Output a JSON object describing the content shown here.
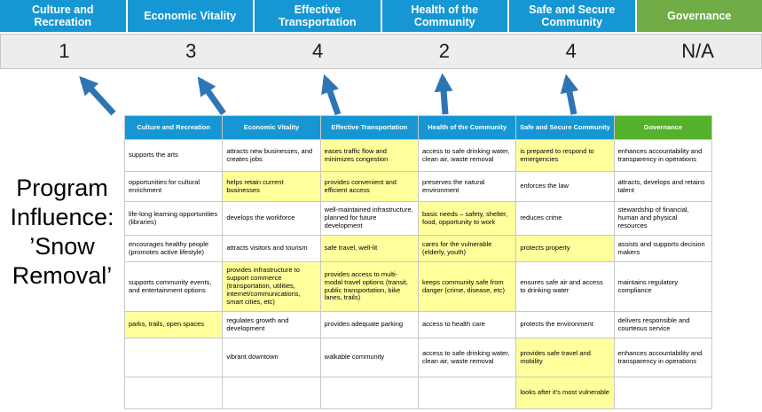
{
  "title": "Program Influence: ’Snow Removal’",
  "colors": {
    "header_blue": "#1697D4",
    "banner_green": "#70AD47",
    "table_green": "#55B02C",
    "highlight_yellow": "#FFFF9C",
    "arrow_blue": "#2E75B6",
    "score_bg": "#EDEDED",
    "border": "#C8C8C8"
  },
  "banner": {
    "columns": [
      {
        "label": "Culture and Recreation",
        "score": "1",
        "color": "blue"
      },
      {
        "label": "Economic Vitality",
        "score": "3",
        "color": "blue"
      },
      {
        "label": "Effective Transportation",
        "score": "4",
        "color": "blue"
      },
      {
        "label": "Health of the Community",
        "score": "2",
        "color": "blue"
      },
      {
        "label": "Safe and Secure Community",
        "score": "4",
        "color": "blue"
      },
      {
        "label": "Governance",
        "score": "N/A",
        "color": "green"
      }
    ]
  },
  "table": {
    "headers": [
      "Culture and Recreation",
      "Economic Vitality",
      "Effective Transportation",
      "Health of the Community",
      "Safe and Secure Community",
      "Governance"
    ],
    "rows": [
      [
        {
          "t": "supports the arts"
        },
        {
          "t": "attracts new businesses, and creates jobs"
        },
        {
          "t": "eases traffic flow and minimizes congestion",
          "h": true
        },
        {
          "t": "access to safe drinking water, clean air, waste removal"
        },
        {
          "t": "is prepared to respond to emergencies",
          "h": true
        },
        {
          "t": "enhances accountability and transparency in operations"
        }
      ],
      [
        {
          "t": "opportunities for cultural enrichment"
        },
        {
          "t": "helps retain current businesses",
          "h": true
        },
        {
          "t": "provides convenient and efficient access",
          "h": true
        },
        {
          "t": "preserves the natural environment"
        },
        {
          "t": "enforces the law"
        },
        {
          "t": "attracts, develops and retains talent"
        }
      ],
      [
        {
          "t": "life-long learning opportunities (libraries)"
        },
        {
          "t": "develops the workforce"
        },
        {
          "t": "well-maintained infrastructure, planned for future development"
        },
        {
          "t": "basic needs – safety, shelter, food, opportunity to work",
          "h": true
        },
        {
          "t": "reduces crime"
        },
        {
          "t": "stewardship of financial, human and physical resources"
        }
      ],
      [
        {
          "t": "encourages healthy people (promotes active lifestyle)"
        },
        {
          "t": "attracts visitors and tourism"
        },
        {
          "t": "safe travel, well-lit",
          "h": true
        },
        {
          "t": "cares for the vulnerable (elderly, youth)",
          "h": true
        },
        {
          "t": "protects property",
          "h": true
        },
        {
          "t": "assists and supports decision makers"
        }
      ],
      [
        {
          "t": "supports community events, and entertainment options"
        },
        {
          "t": "provides infrastructure to support commerce (transportation, utilities, internet/communications, smart cities, etc)",
          "h": true
        },
        {
          "t": "provides access to multi-modal travel options (transit, public transportation, bike lanes, trails)",
          "h": true
        },
        {
          "t": "keeps community safe from danger (crime, disease, etc)",
          "h": true
        },
        {
          "t": "ensures safe air and access to drinking water"
        },
        {
          "t": "maintains regulatory compliance"
        }
      ],
      [
        {
          "t": "parks, trails, open spaces",
          "h": true
        },
        {
          "t": "regulates growth and development"
        },
        {
          "t": "provides adequate parking"
        },
        {
          "t": "access to health care"
        },
        {
          "t": "protects the environment"
        },
        {
          "t": "delivers responsible and courteous service"
        }
      ],
      [
        {
          "t": ""
        },
        {
          "t": "vibrant downtown"
        },
        {
          "t": "walkable community"
        },
        {
          "t": "access to safe drinking water, clean air, waste removal"
        },
        {
          "t": "provides safe travel and mobility",
          "h": true
        },
        {
          "t": "enhances accountability and transparency in operations"
        }
      ],
      [
        {
          "t": ""
        },
        {
          "t": ""
        },
        {
          "t": ""
        },
        {
          "t": ""
        },
        {
          "t": "looks after it's most vulnerable",
          "h": true
        },
        {
          "t": ""
        }
      ]
    ]
  }
}
